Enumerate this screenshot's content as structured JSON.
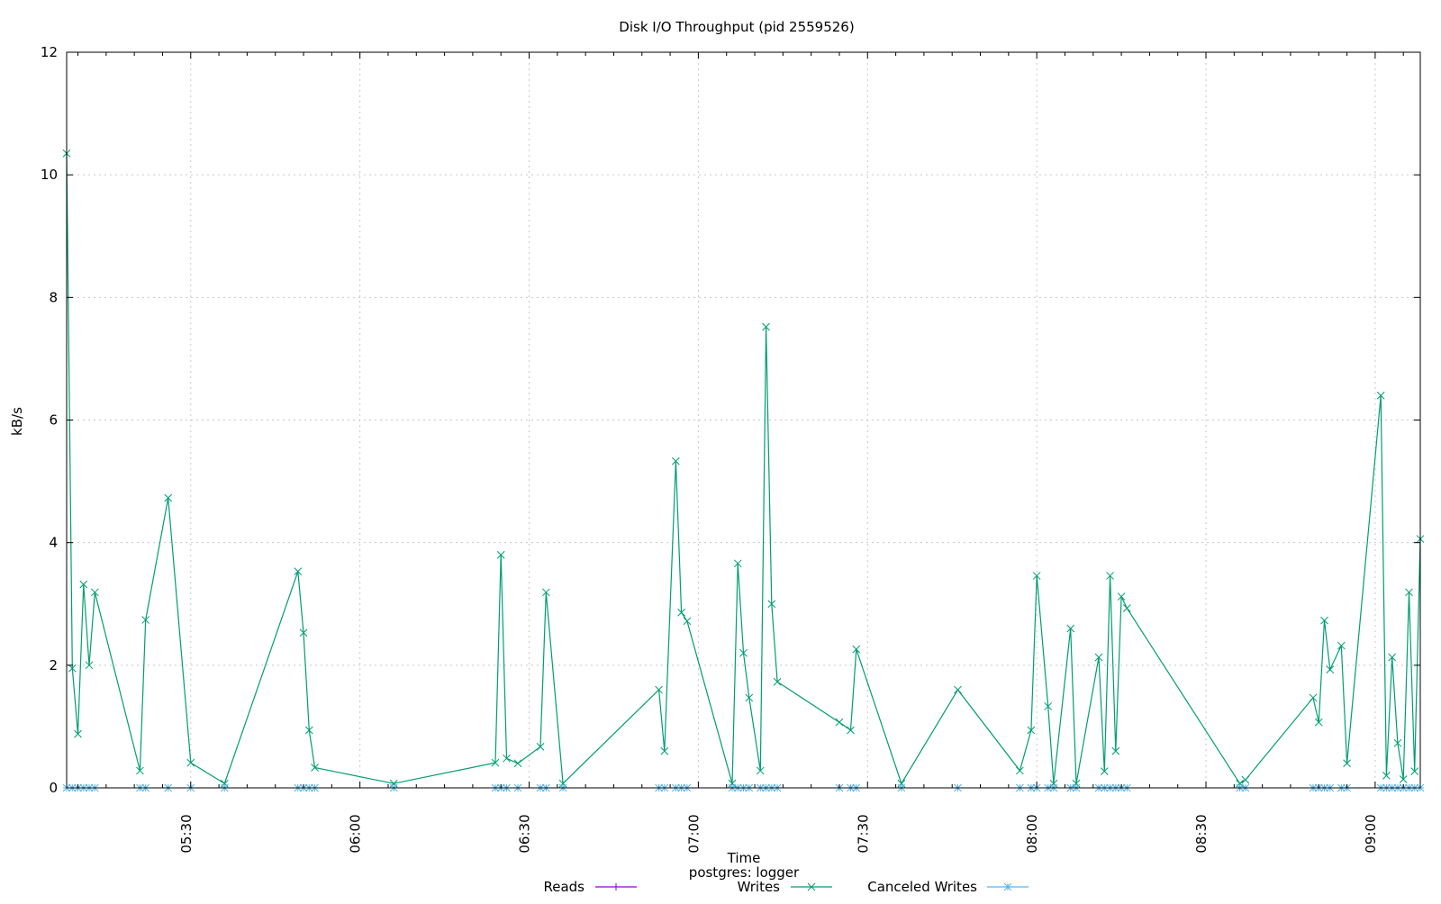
{
  "chart_data": {
    "type": "line",
    "title": "Disk I/O Throughput (pid 2559526)",
    "xlabel": "Time",
    "subtitle": "postgres: logger",
    "ylabel": "kB/s",
    "ylim": [
      0,
      12
    ],
    "xlim": [
      "05:08",
      "09:08"
    ],
    "x_ticks": [
      "05:30",
      "06:00",
      "06:30",
      "07:00",
      "07:30",
      "08:00",
      "08:30",
      "09:00"
    ],
    "y_ticks": [
      "0",
      "2",
      "4",
      "6",
      "8",
      "10",
      "12"
    ],
    "grid": true,
    "legend_position": "bottom-center",
    "colors": {
      "reads": "#9400d3",
      "writes": "#009e73",
      "canceled": "#56b4e9"
    },
    "series": [
      {
        "name": "Reads",
        "marker": "plus",
        "x": [],
        "y": []
      },
      {
        "name": "Writes",
        "marker": "cross",
        "x": [
          "05:08",
          "05:09",
          "05:10",
          "05:11",
          "05:12",
          "05:13",
          "05:21",
          "05:22",
          "05:26",
          "05:30",
          "05:36",
          "05:49",
          "05:50",
          "05:51",
          "05:52",
          "06:06",
          "06:24",
          "06:25",
          "06:26",
          "06:28",
          "06:32",
          "06:33",
          "06:36",
          "06:53",
          "06:54",
          "06:56",
          "06:57",
          "06:58",
          "07:06",
          "07:07",
          "07:08",
          "07:09",
          "07:11",
          "07:12",
          "07:13",
          "07:14",
          "07:25",
          "07:27",
          "07:28",
          "07:36",
          "07:46",
          "07:57",
          "07:59",
          "08:00",
          "08:02",
          "08:03",
          "08:06",
          "08:07",
          "08:11",
          "08:12",
          "08:13",
          "08:14",
          "08:15",
          "08:16",
          "08:36",
          "08:37",
          "08:49",
          "08:50",
          "08:51",
          "08:52",
          "08:54",
          "08:55",
          "09:01",
          "09:02",
          "09:03",
          "09:04",
          "09:05",
          "09:06",
          "09:07",
          "09:08"
        ],
        "y": [
          10.35,
          1.95,
          0.88,
          3.32,
          2.0,
          3.19,
          0.28,
          2.74,
          4.73,
          0.41,
          0.07,
          3.53,
          2.53,
          0.94,
          0.33,
          0.07,
          0.41,
          3.8,
          0.48,
          0.4,
          0.67,
          3.19,
          0.07,
          1.6,
          0.6,
          5.33,
          2.86,
          2.72,
          0.07,
          3.66,
          2.2,
          1.47,
          0.28,
          7.52,
          3.0,
          1.73,
          1.07,
          0.94,
          2.26,
          0.07,
          1.6,
          0.28,
          0.94,
          3.46,
          1.33,
          0.07,
          2.6,
          0.07,
          2.13,
          0.27,
          3.46,
          0.6,
          3.12,
          2.93,
          0.07,
          0.13,
          1.47,
          1.07,
          2.73,
          1.93,
          2.32,
          0.4,
          6.4,
          0.2,
          2.13,
          0.73,
          0.14,
          3.19,
          0.27,
          4.06
        ]
      },
      {
        "name": "Canceled Writes",
        "marker": "star",
        "x": [
          "05:08",
          "05:09",
          "05:10",
          "05:11",
          "05:12",
          "05:13",
          "05:21",
          "05:22",
          "05:26",
          "05:30",
          "05:36",
          "05:49",
          "05:50",
          "05:51",
          "05:52",
          "06:06",
          "06:24",
          "06:25",
          "06:26",
          "06:28",
          "06:32",
          "06:33",
          "06:36",
          "06:53",
          "06:54",
          "06:56",
          "06:57",
          "06:58",
          "07:06",
          "07:07",
          "07:08",
          "07:09",
          "07:11",
          "07:12",
          "07:13",
          "07:14",
          "07:25",
          "07:27",
          "07:28",
          "07:36",
          "07:46",
          "07:57",
          "07:59",
          "08:00",
          "08:02",
          "08:03",
          "08:06",
          "08:07",
          "08:11",
          "08:12",
          "08:13",
          "08:14",
          "08:15",
          "08:16",
          "08:36",
          "08:37",
          "08:49",
          "08:50",
          "08:51",
          "08:52",
          "08:54",
          "08:55",
          "09:01",
          "09:02",
          "09:03",
          "09:04",
          "09:05",
          "09:06",
          "09:07",
          "09:08"
        ],
        "y": [
          0,
          0,
          0,
          0,
          0,
          0,
          0,
          0,
          0,
          0,
          0,
          0,
          0,
          0,
          0,
          0,
          0,
          0,
          0,
          0,
          0,
          0,
          0,
          0,
          0,
          0,
          0,
          0,
          0,
          0,
          0,
          0,
          0,
          0,
          0,
          0,
          0,
          0,
          0,
          0,
          0,
          0,
          0,
          0,
          0,
          0,
          0,
          0,
          0,
          0,
          0,
          0,
          0,
          0,
          0,
          0,
          0,
          0,
          0,
          0,
          0,
          0,
          0,
          0,
          0,
          0,
          0,
          0,
          0,
          0
        ]
      }
    ]
  }
}
